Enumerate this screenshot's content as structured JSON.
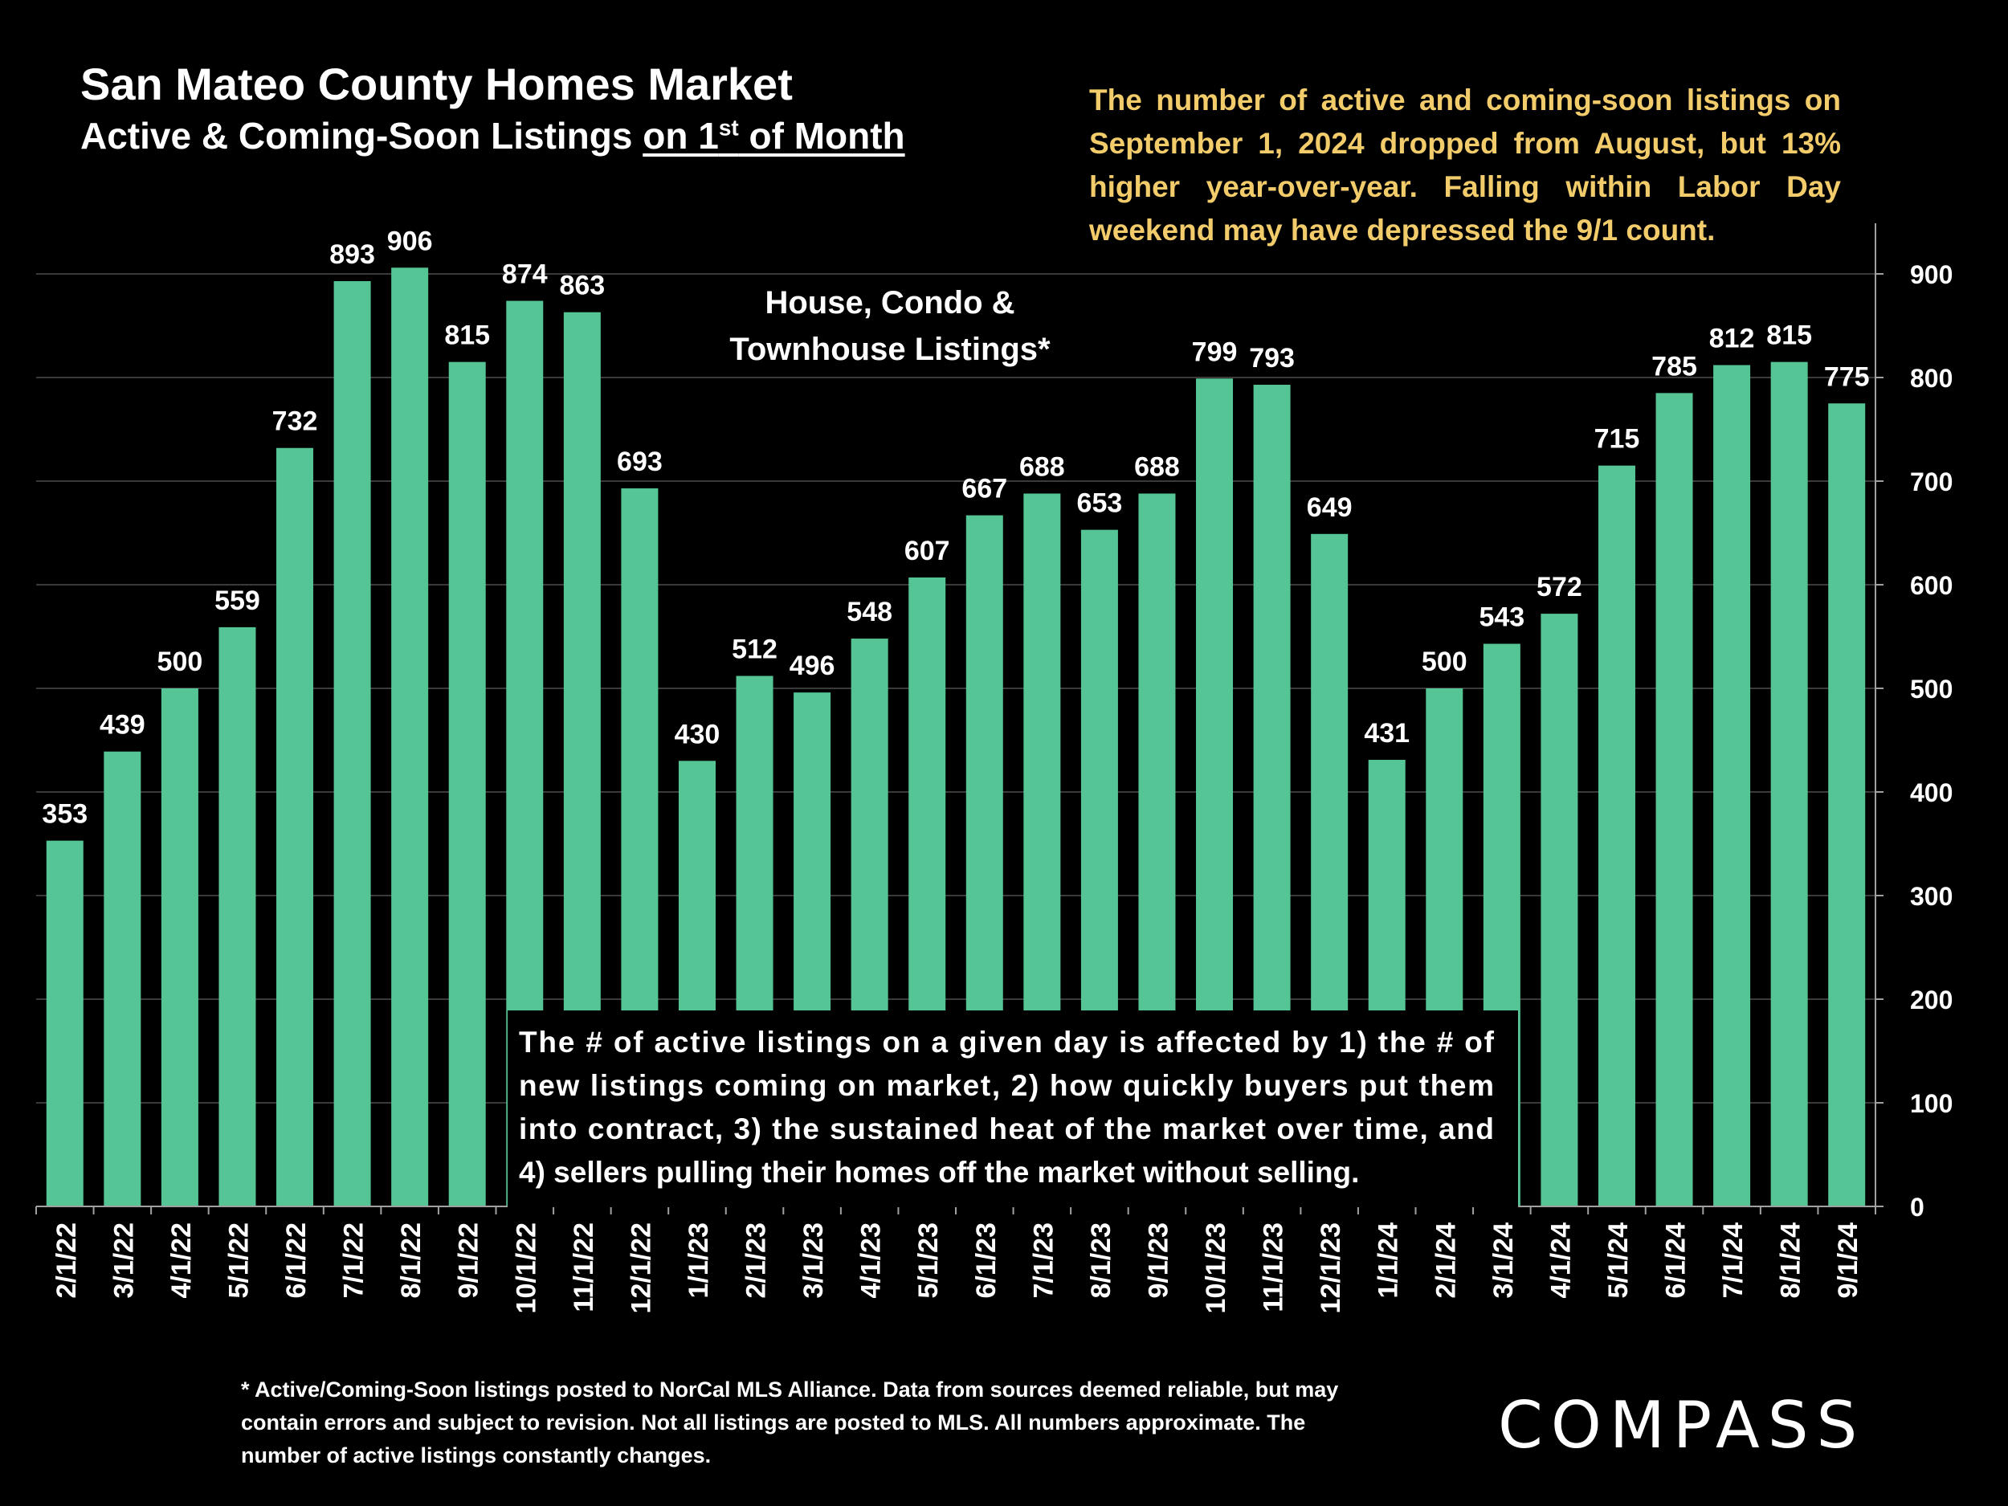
{
  "title": "San Mateo County Homes Market",
  "subtitle": {
    "prefix": "Active & Coming-Soon Listings ",
    "underlined_prefix": "on 1",
    "superscript": "st",
    "underlined_suffix": " of Month"
  },
  "summary": "The number of active and coming-soon listings on September 1, 2024 dropped from August, but 13% higher year-over-year. Falling within Labor Day weekend may have depressed the 9/1 count.",
  "chart_label_lines": [
    "House, Condo &",
    "Townhouse Listings*"
  ],
  "explanation_lines": [
    "The # of active listings on a given day is affected by 1) the # of",
    "new listings coming on market, 2) how quickly buyers put them",
    "into contract, 3) the sustained heat of the market over time, and",
    "4) sellers pulling their homes off the market without selling."
  ],
  "footnote": "* Active/Coming-Soon listings posted to NorCal MLS Alliance.  Data from sources deemed reliable, but may contain errors and subject to revision.  Not all listings are posted to MLS. All numbers approximate. The number of active listings constantly changes.",
  "logo": "COMPASS",
  "colors": {
    "bar": "#56C596",
    "background": "#000000",
    "summary_text": "#F2CC6B",
    "text": "#ffffff",
    "annotation_box": "#000000"
  },
  "chart_data": {
    "type": "bar",
    "title": "San Mateo County Homes Market",
    "ylabel": "",
    "xlabel": "",
    "ylim": [
      0,
      900
    ],
    "yticks": [
      0,
      100,
      200,
      300,
      400,
      500,
      600,
      700,
      800,
      900
    ],
    "y_axis_position": "right",
    "grid": true,
    "categories": [
      "2/1/22",
      "3/1/22",
      "4/1/22",
      "5/1/22",
      "6/1/22",
      "7/1/22",
      "8/1/22",
      "9/1/22",
      "10/1/22",
      "11/1/22",
      "12/1/22",
      "1/1/23",
      "2/1/23",
      "3/1/23",
      "4/1/23",
      "5/1/23",
      "6/1/23",
      "7/1/23",
      "8/1/23",
      "9/1/23",
      "10/1/23",
      "11/1/23",
      "12/1/23",
      "1/1/24",
      "2/1/24",
      "3/1/24",
      "4/1/24",
      "5/1/24",
      "6/1/24",
      "7/1/24",
      "8/1/24",
      "9/1/24"
    ],
    "values": [
      353,
      439,
      500,
      559,
      732,
      893,
      906,
      815,
      874,
      863,
      693,
      430,
      512,
      496,
      548,
      607,
      667,
      688,
      653,
      688,
      799,
      793,
      649,
      431,
      500,
      543,
      572,
      715,
      785,
      812,
      815,
      775
    ]
  }
}
